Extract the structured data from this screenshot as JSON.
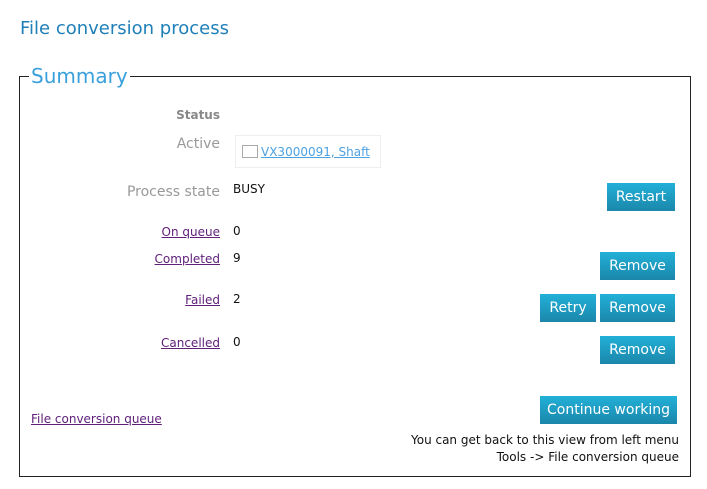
{
  "page_title": "File conversion process",
  "summary": {
    "legend": "Summary",
    "status_label": "Status",
    "active_label": "Active",
    "active_link": "VX3000091, Shaft",
    "process_state_label": "Process state",
    "process_state_value": "BUSY",
    "restart": "Restart",
    "on_queue_label": "On queue",
    "on_queue_value": "0",
    "completed_label": "Completed",
    "completed_value": "9",
    "failed_label": "Failed",
    "failed_value": "2",
    "cancelled_label": "Cancelled",
    "cancelled_value": "0",
    "remove": "Remove",
    "retry": "Retry",
    "queue_link": "File conversion queue",
    "continue": "Continue working",
    "note_line1": "You can get back to this view from left menu",
    "note_line2": "Tools -> File conversion queue"
  }
}
